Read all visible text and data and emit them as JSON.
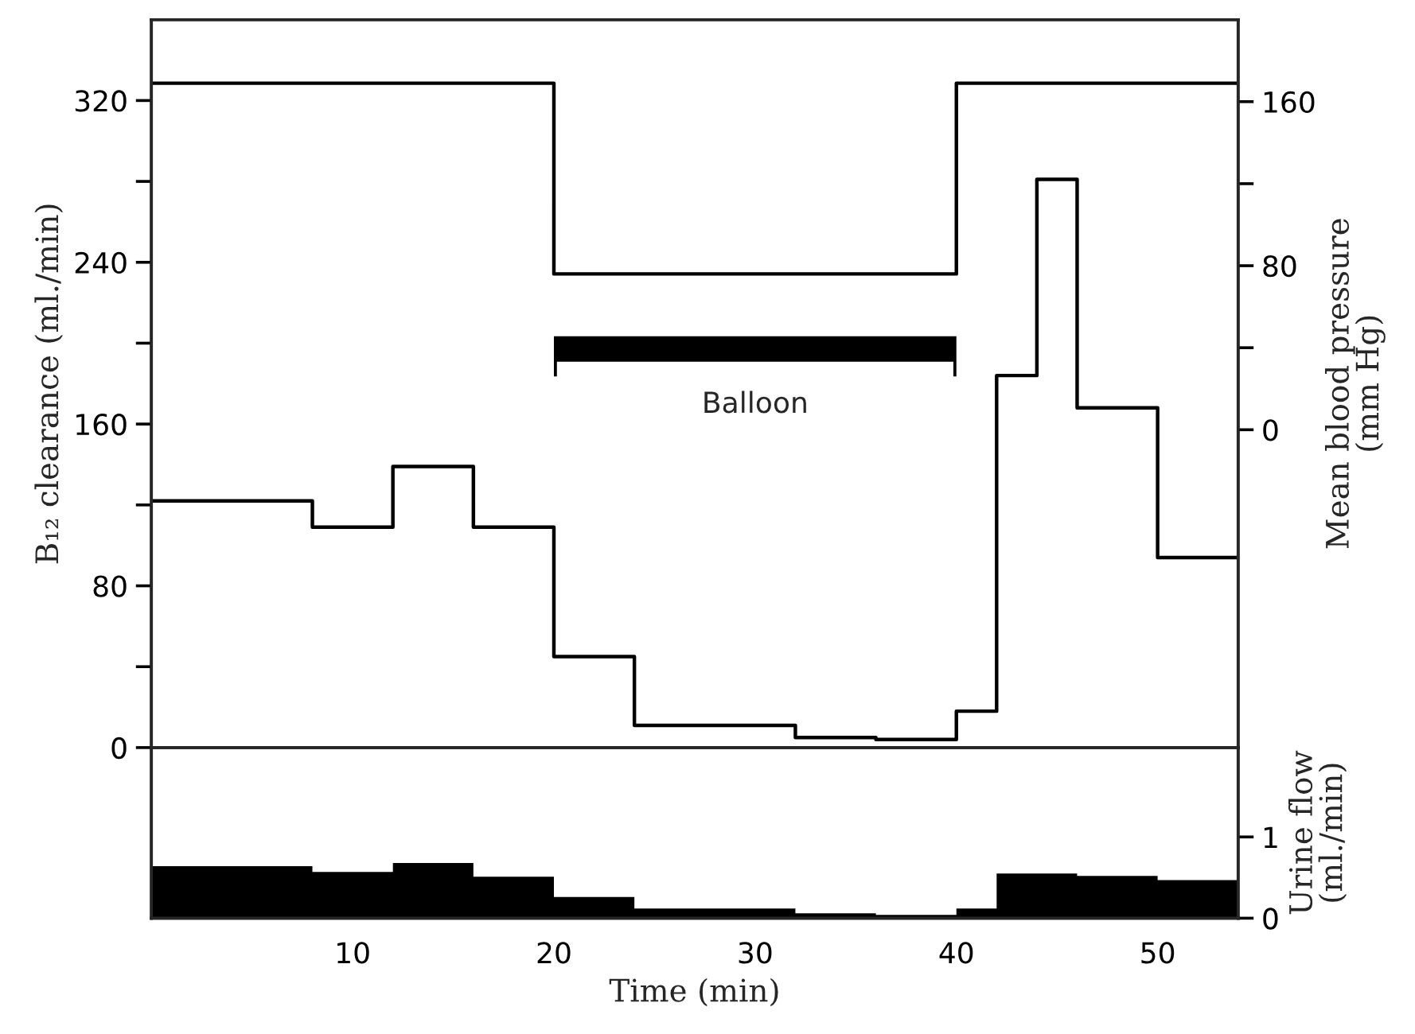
{
  "chart_data": [
    {
      "type": "step",
      "ylabel": "B₁₂ clearance (ml./min)",
      "y2label": "Mean blood pressure\n(mm Hg)",
      "xlim": [
        0,
        54
      ],
      "ylim": [
        0,
        360
      ],
      "yticks": [
        0,
        {
          "value": 40,
          "label": null
        },
        80,
        {
          "value": 120,
          "label": null
        },
        160,
        {
          "value": 200,
          "label": null
        },
        240,
        {
          "value": 280,
          "label": null
        },
        320
      ],
      "y2lim": [
        -155,
        200
      ],
      "y2ticks": [
        0,
        {
          "value": 40,
          "label": null
        },
        80,
        {
          "value": 120,
          "label": null
        },
        160
      ],
      "tick_labels": "y",
      "grid": false,
      "series": [
        {
          "color": "#000000",
          "x": [
            0,
            8,
            12,
            16,
            20,
            24,
            32,
            36,
            40,
            42,
            44,
            46,
            50
          ],
          "values": [
            122,
            109,
            139,
            109,
            45,
            11,
            5,
            4,
            18,
            184,
            281,
            168,
            94
          ]
        },
        {
          "color": "#000000",
          "axis": "y2",
          "x": [
            0,
            20,
            40
          ],
          "values": [
            169,
            76,
            169
          ]
        }
      ],
      "annotations": [
        "Balloon"
      ]
    },
    {
      "type": "histogram",
      "xlabel": "Time (min)",
      "y2label": "Urine flow\n(ml./min)",
      "xlim": [
        0,
        54
      ],
      "xticks": [
        10,
        20,
        30,
        40,
        50
      ],
      "y2lim": [
        0,
        2.1
      ],
      "y2ticks": [
        0,
        1
      ],
      "grid": false,
      "bins": [
        0,
        8,
        12,
        16,
        20,
        24,
        32,
        36,
        40,
        42,
        46,
        50,
        54
      ],
      "series": [
        {
          "color": "#000000",
          "axis": "y2",
          "values": [
            0.64,
            0.57,
            0.68,
            0.51,
            0.26,
            0.12,
            0.06,
            0.04,
            0.12,
            0.55,
            0.52,
            0.47
          ]
        }
      ]
    }
  ]
}
